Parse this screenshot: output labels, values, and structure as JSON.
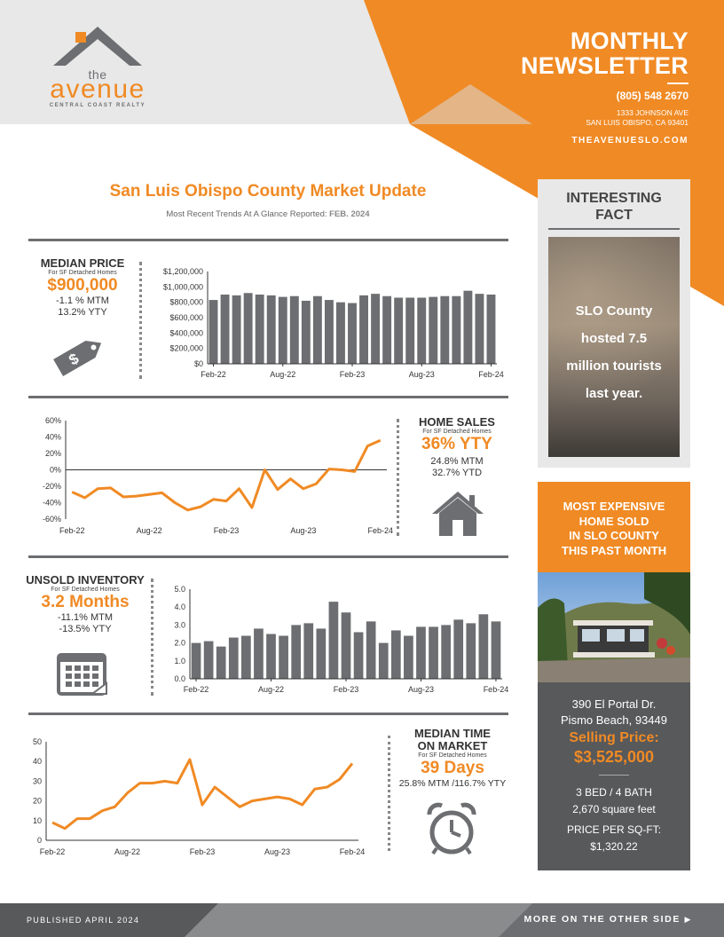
{
  "header": {
    "logo": {
      "the": "the",
      "name": "avenue",
      "tagline": "CENTRAL COAST REALTY"
    },
    "title_line1": "MONTHLY",
    "title_line2": "NEWSLETTER",
    "phone": "(805) 548 2670",
    "address_line1": "1333 JOHNSON AVE",
    "address_line2": "SAN LUIS OBISPO, CA 93401",
    "website": "THEAVENUESLO.COM"
  },
  "main": {
    "title": "San Luis Obispo County Market Update",
    "subtitle_prefix": "Most Recent Trends At A Glance Reported:",
    "subtitle_date": "FEB. 2024"
  },
  "median_price": {
    "title": "MEDIAN PRICE",
    "subtitle": "For SF Detached Homes",
    "value": "$900,000",
    "mtm": "-1.1 % MTM",
    "ytt": "13.2% YTY",
    "icon": "price-tag-icon"
  },
  "home_sales": {
    "title": "HOME SALES",
    "subtitle": "For SF Detached Homes",
    "value": "36% YTY",
    "mtm": "24.8% MTM",
    "ytd": "32.7% YTD",
    "icon": "house-icon"
  },
  "inventory": {
    "title": "UNSOLD INVENTORY",
    "subtitle": "For SF Detached Homes",
    "value": "3.2 Months",
    "mtm": "-11.1% MTM",
    "yty": "-13.5% YTY",
    "icon": "calendar-icon"
  },
  "time_on_market": {
    "title_line1": "MEDIAN TIME",
    "title_line2": "ON MARKET",
    "subtitle": "For SF Detached Homes",
    "value": "39 Days",
    "change": "25.8% MTM /116.7% YTY",
    "icon": "alarm-clock-icon"
  },
  "fact": {
    "title_line1": "INTERESTING",
    "title_line2": "FACT",
    "text_lines": [
      "SLO County",
      "hosted 7.5",
      "million tourists",
      "last year."
    ]
  },
  "expensive": {
    "title_lines": [
      "MOST EXPENSIVE",
      "HOME SOLD",
      "IN SLO COUNTY",
      "THIS PAST MONTH"
    ],
    "address_line1": "390 El Portal Dr.",
    "address_line2": "Pismo Beach, 93449",
    "price_label": "Selling Price:",
    "price": "$3,525,000",
    "beds_baths": "3 BED / 4 BATH",
    "sqft": "2,670 square feet",
    "ppsf_label": "PRICE PER SQ-FT:",
    "ppsf": "$1,320.22"
  },
  "footer": {
    "published": "PUBLISHED APRIL 2024",
    "more": "MORE ON THE OTHER SIDE"
  },
  "colors": {
    "accent": "#f08a24",
    "dark_gray": "#6d6e71",
    "bar_gray": "#6d6e71",
    "light_gray": "#e8e8e8"
  },
  "chart_data": [
    {
      "type": "bar",
      "id": "median-price",
      "categories": [
        "Feb-22",
        "Mar-22",
        "Apr-22",
        "May-22",
        "Jun-22",
        "Jul-22",
        "Aug-22",
        "Sep-22",
        "Oct-22",
        "Nov-22",
        "Dec-22",
        "Jan-23",
        "Feb-23",
        "Mar-23",
        "Apr-23",
        "May-23",
        "Jun-23",
        "Jul-23",
        "Aug-23",
        "Sep-23",
        "Oct-23",
        "Nov-23",
        "Dec-23",
        "Jan-24",
        "Feb-24"
      ],
      "values": [
        830000,
        900000,
        890000,
        920000,
        900000,
        890000,
        870000,
        880000,
        820000,
        880000,
        830000,
        800000,
        790000,
        890000,
        910000,
        880000,
        860000,
        860000,
        860000,
        870000,
        880000,
        880000,
        950000,
        910000,
        900000
      ],
      "tick_labels": [
        "Feb-22",
        "Aug-22",
        "Feb-23",
        "Aug-23",
        "Feb-24"
      ],
      "tick_indices": [
        0,
        6,
        12,
        18,
        24
      ],
      "yticks": [
        "$0",
        "$200,000",
        "$400,000",
        "$600,000",
        "$800,000",
        "$1,000,000",
        "$1,200,000"
      ],
      "ylim": [
        0,
        1200000
      ],
      "xlabel": "",
      "ylabel": ""
    },
    {
      "type": "line",
      "id": "home-sales",
      "x": [
        "Feb-22",
        "Mar-22",
        "Apr-22",
        "May-22",
        "Jun-22",
        "Jul-22",
        "Aug-22",
        "Sep-22",
        "Oct-22",
        "Nov-22",
        "Dec-22",
        "Jan-23",
        "Feb-23",
        "Mar-23",
        "Apr-23",
        "May-23",
        "Jun-23",
        "Jul-23",
        "Aug-23",
        "Sep-23",
        "Oct-23",
        "Nov-23",
        "Dec-23",
        "Jan-24",
        "Feb-24"
      ],
      "values": [
        -27,
        -34,
        -23,
        -22,
        -33,
        -32,
        -30,
        -28,
        -40,
        -49,
        -45,
        -36,
        -38,
        -23,
        -46,
        0,
        -24,
        -11,
        -23,
        -17,
        1,
        0,
        -2,
        29,
        36
      ],
      "tick_labels": [
        "Feb-22",
        "Aug-22",
        "Feb-23",
        "Aug-23",
        "Feb-24"
      ],
      "yticks": [
        "-60%",
        "-40%",
        "-20%",
        "0%",
        "20%",
        "40%",
        "60%"
      ],
      "ylim": [
        -60,
        60
      ],
      "xlabel": "",
      "ylabel": ""
    },
    {
      "type": "bar",
      "id": "unsold-inventory",
      "categories": [
        "Feb-22",
        "Mar-22",
        "Apr-22",
        "May-22",
        "Jun-22",
        "Jul-22",
        "Aug-22",
        "Sep-22",
        "Oct-22",
        "Nov-22",
        "Dec-22",
        "Jan-23",
        "Feb-23",
        "Mar-23",
        "Apr-23",
        "May-23",
        "Jun-23",
        "Jul-23",
        "Aug-23",
        "Sep-23",
        "Oct-23",
        "Nov-23",
        "Dec-23",
        "Jan-24",
        "Feb-24"
      ],
      "values": [
        2.0,
        2.1,
        1.8,
        2.3,
        2.4,
        2.8,
        2.5,
        2.4,
        3.0,
        3.1,
        2.8,
        4.3,
        3.7,
        2.6,
        3.2,
        2.0,
        2.7,
        2.4,
        2.9,
        2.9,
        3.0,
        3.3,
        3.1,
        3.6,
        3.2
      ],
      "tick_labels": [
        "Feb-22",
        "Aug-22",
        "Feb-23",
        "Aug-23",
        "Feb-24"
      ],
      "tick_indices": [
        0,
        6,
        12,
        18,
        24
      ],
      "yticks": [
        "0.0",
        "1.0",
        "2.0",
        "3.0",
        "4.0",
        "5.0"
      ],
      "ylim": [
        0,
        5
      ],
      "xlabel": "",
      "ylabel": ""
    },
    {
      "type": "line",
      "id": "time-on-market",
      "x": [
        "Feb-22",
        "Mar-22",
        "Apr-22",
        "May-22",
        "Jun-22",
        "Jul-22",
        "Aug-22",
        "Sep-22",
        "Oct-22",
        "Nov-22",
        "Dec-22",
        "Jan-23",
        "Feb-23",
        "Mar-23",
        "Apr-23",
        "May-23",
        "Jun-23",
        "Jul-23",
        "Aug-23",
        "Sep-23",
        "Oct-23",
        "Nov-23",
        "Dec-23",
        "Jan-24",
        "Feb-24"
      ],
      "values": [
        9,
        6,
        11,
        11,
        15,
        17,
        24,
        29,
        29,
        30,
        29,
        41,
        18,
        27,
        22,
        17,
        20,
        21,
        22,
        21,
        18,
        26,
        27,
        31,
        39
      ],
      "tick_labels": [
        "Feb-22",
        "Aug-22",
        "Feb-23",
        "Aug-23",
        "Feb-24"
      ],
      "yticks": [
        "0",
        "10",
        "20",
        "30",
        "40",
        "50"
      ],
      "ylim": [
        0,
        50
      ],
      "xlabel": "",
      "ylabel": ""
    }
  ]
}
